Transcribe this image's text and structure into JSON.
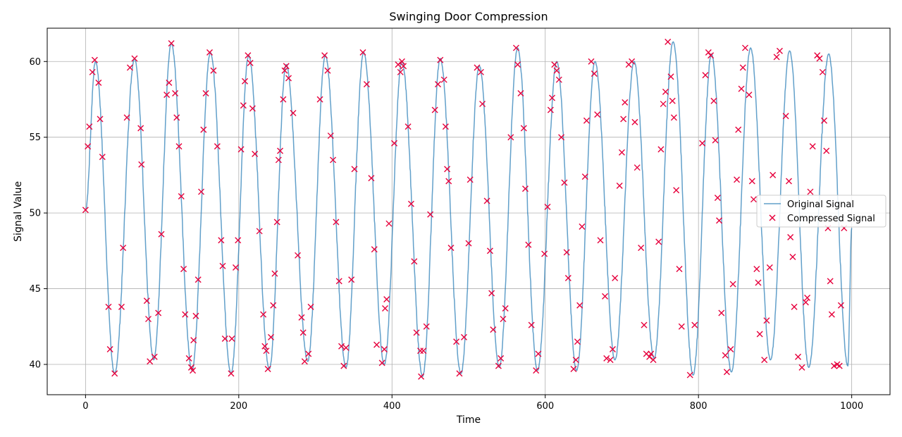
{
  "chart_data": {
    "type": "line",
    "title": "Swinging Door Compression",
    "xlabel": "Time",
    "ylabel": "Signal Value",
    "xlim": [
      -50,
      1050
    ],
    "ylim": [
      38,
      62.2
    ],
    "xticks": [
      0,
      200,
      400,
      600,
      800,
      1000
    ],
    "yticks": [
      40,
      45,
      50,
      55,
      60
    ],
    "grid": true,
    "legend_position": "center-right",
    "series": [
      {
        "name": "Original Signal",
        "style": "line",
        "color": "#1f77b4",
        "description": "noisy sinusoid, amplitude ~10 around 50, period ~50.8 time units",
        "peaks": [
          [
            13,
            60.0
          ],
          [
            64,
            60.2
          ],
          [
            112,
            61.2
          ],
          [
            163,
            60.6
          ],
          [
            213,
            60.4
          ],
          [
            262,
            59.8
          ],
          [
            313,
            60.4
          ],
          [
            363,
            60.6
          ],
          [
            413,
            60.0
          ],
          [
            463,
            60.2
          ],
          [
            514,
            59.7
          ],
          [
            564,
            60.9
          ],
          [
            615,
            60.0
          ],
          [
            665,
            60.0
          ],
          [
            716,
            60.0
          ],
          [
            767,
            61.3
          ],
          [
            817,
            60.5
          ],
          [
            868,
            60.9
          ],
          [
            919,
            60.7
          ],
          [
            970,
            60.5
          ]
        ],
        "troughs": [
          [
            38,
            39.4
          ],
          [
            89,
            40.3
          ],
          [
            139,
            39.6
          ],
          [
            190,
            39.4
          ],
          [
            240,
            39.7
          ],
          [
            290,
            40.2
          ],
          [
            340,
            39.8
          ],
          [
            390,
            40.0
          ],
          [
            440,
            39.2
          ],
          [
            490,
            39.4
          ],
          [
            540,
            39.8
          ],
          [
            590,
            39.6
          ],
          [
            641,
            39.6
          ],
          [
            691,
            40.3
          ],
          [
            742,
            40.4
          ],
          [
            793,
            39.3
          ],
          [
            843,
            39.5
          ],
          [
            894,
            40.3
          ],
          [
            944,
            39.8
          ],
          [
            995,
            39.9
          ]
        ]
      },
      {
        "name": "Compressed Signal",
        "style": "markers-x",
        "color": "#e6003c",
        "points": [
          [
            0,
            50.2
          ],
          [
            3,
            54.4
          ],
          [
            5,
            55.7
          ],
          [
            9,
            59.3
          ],
          [
            12,
            60.1
          ],
          [
            17,
            58.6
          ],
          [
            19,
            56.2
          ],
          [
            22,
            53.7
          ],
          [
            30,
            43.8
          ],
          [
            32,
            41.0
          ],
          [
            38,
            39.4
          ],
          [
            47,
            43.8
          ],
          [
            49,
            47.7
          ],
          [
            54,
            56.3
          ],
          [
            58,
            59.6
          ],
          [
            64,
            60.2
          ],
          [
            72,
            55.6
          ],
          [
            73,
            53.2
          ],
          [
            80,
            44.2
          ],
          [
            82,
            43.0
          ],
          [
            84,
            40.2
          ],
          [
            90,
            40.5
          ],
          [
            95,
            43.4
          ],
          [
            99,
            48.6
          ],
          [
            106,
            57.8
          ],
          [
            109,
            58.6
          ],
          [
            112,
            61.2
          ],
          [
            117,
            57.9
          ],
          [
            119,
            56.3
          ],
          [
            122,
            54.4
          ],
          [
            125,
            51.1
          ],
          [
            128,
            46.3
          ],
          [
            130,
            43.3
          ],
          [
            135,
            40.4
          ],
          [
            138,
            39.8
          ],
          [
            140,
            39.6
          ],
          [
            141,
            41.6
          ],
          [
            144,
            43.2
          ],
          [
            147,
            45.6
          ],
          [
            151,
            51.4
          ],
          [
            154,
            55.5
          ],
          [
            157,
            57.9
          ],
          [
            162,
            60.6
          ],
          [
            167,
            59.4
          ],
          [
            172,
            54.4
          ],
          [
            177,
            48.2
          ],
          [
            179,
            46.5
          ],
          [
            182,
            41.7
          ],
          [
            190,
            39.4
          ],
          [
            191,
            41.7
          ],
          [
            196,
            46.4
          ],
          [
            199,
            48.2
          ],
          [
            203,
            54.2
          ],
          [
            206,
            57.1
          ],
          [
            208,
            58.7
          ],
          [
            212,
            60.4
          ],
          [
            215,
            59.9
          ],
          [
            218,
            56.9
          ],
          [
            221,
            53.9
          ],
          [
            227,
            48.8
          ],
          [
            232,
            43.3
          ],
          [
            234,
            41.2
          ],
          [
            236,
            40.9
          ],
          [
            238,
            39.7
          ],
          [
            242,
            41.8
          ],
          [
            245,
            43.9
          ],
          [
            247,
            46.0
          ],
          [
            250,
            49.4
          ],
          [
            252,
            53.5
          ],
          [
            254,
            54.1
          ],
          [
            258,
            57.5
          ],
          [
            260,
            59.4
          ],
          [
            262,
            59.7
          ],
          [
            265,
            58.9
          ],
          [
            271,
            56.6
          ],
          [
            277,
            47.2
          ],
          [
            282,
            43.1
          ],
          [
            284,
            42.1
          ],
          [
            286,
            40.2
          ],
          [
            291,
            40.7
          ],
          [
            294,
            43.8
          ],
          [
            306,
            57.5
          ],
          [
            312,
            60.4
          ],
          [
            316,
            59.4
          ],
          [
            320,
            55.1
          ],
          [
            323,
            53.5
          ],
          [
            327,
            49.4
          ],
          [
            331,
            45.5
          ],
          [
            334,
            41.2
          ],
          [
            337,
            39.9
          ],
          [
            340,
            41.1
          ],
          [
            347,
            45.6
          ],
          [
            351,
            52.9
          ],
          [
            362,
            60.6
          ],
          [
            367,
            58.5
          ],
          [
            373,
            52.3
          ],
          [
            377,
            47.6
          ],
          [
            380,
            41.3
          ],
          [
            387,
            40.1
          ],
          [
            390,
            41.0
          ],
          [
            391,
            43.7
          ],
          [
            393,
            44.3
          ],
          [
            396,
            49.3
          ],
          [
            403,
            54.6
          ],
          [
            408,
            59.8
          ],
          [
            411,
            59.3
          ],
          [
            413,
            60.0
          ],
          [
            415,
            59.7
          ],
          [
            421,
            55.7
          ],
          [
            425,
            50.6
          ],
          [
            429,
            46.8
          ],
          [
            432,
            42.1
          ],
          [
            437,
            40.9
          ],
          [
            438,
            39.2
          ],
          [
            441,
            40.9
          ],
          [
            445,
            42.5
          ],
          [
            450,
            49.9
          ],
          [
            456,
            56.8
          ],
          [
            460,
            58.5
          ],
          [
            463,
            60.1
          ],
          [
            468,
            58.8
          ],
          [
            470,
            55.7
          ],
          [
            472,
            52.9
          ],
          [
            474,
            52.1
          ],
          [
            477,
            47.7
          ],
          [
            484,
            41.5
          ],
          [
            488,
            39.4
          ],
          [
            494,
            41.8
          ],
          [
            500,
            48.0
          ],
          [
            502,
            52.2
          ],
          [
            511,
            59.6
          ],
          [
            516,
            59.3
          ],
          [
            518,
            57.2
          ],
          [
            524,
            50.8
          ],
          [
            528,
            47.5
          ],
          [
            530,
            44.7
          ],
          [
            532,
            42.3
          ],
          [
            539,
            39.9
          ],
          [
            542,
            40.4
          ],
          [
            545,
            43.0
          ],
          [
            548,
            43.7
          ],
          [
            555,
            55.0
          ],
          [
            562,
            60.9
          ],
          [
            564,
            59.8
          ],
          [
            568,
            57.9
          ],
          [
            572,
            55.6
          ],
          [
            574,
            51.6
          ],
          [
            578,
            47.9
          ],
          [
            582,
            42.6
          ],
          [
            588,
            39.6
          ],
          [
            591,
            40.7
          ],
          [
            599,
            47.3
          ],
          [
            603,
            50.4
          ],
          [
            607,
            56.8
          ],
          [
            609,
            57.6
          ],
          [
            612,
            59.8
          ],
          [
            615,
            59.4
          ],
          [
            618,
            58.8
          ],
          [
            621,
            55.0
          ],
          [
            625,
            52.0
          ],
          [
            628,
            47.4
          ],
          [
            630,
            45.7
          ],
          [
            637,
            39.7
          ],
          [
            640,
            40.3
          ],
          [
            642,
            41.5
          ],
          [
            645,
            43.9
          ],
          [
            648,
            49.1
          ],
          [
            652,
            52.4
          ],
          [
            654,
            56.1
          ],
          [
            660,
            60.0
          ],
          [
            664,
            59.2
          ],
          [
            668,
            56.5
          ],
          [
            672,
            48.2
          ],
          [
            678,
            44.5
          ],
          [
            680,
            40.4
          ],
          [
            685,
            40.3
          ],
          [
            688,
            41.0
          ],
          [
            691,
            45.7
          ],
          [
            697,
            51.8
          ],
          [
            700,
            54.0
          ],
          [
            702,
            56.2
          ],
          [
            704,
            57.3
          ],
          [
            709,
            59.8
          ],
          [
            713,
            60.0
          ],
          [
            717,
            56.0
          ],
          [
            720,
            53.0
          ],
          [
            725,
            47.7
          ],
          [
            729,
            42.6
          ],
          [
            732,
            40.7
          ],
          [
            736,
            40.5
          ],
          [
            738,
            40.7
          ],
          [
            741,
            40.3
          ],
          [
            748,
            48.1
          ],
          [
            751,
            54.2
          ],
          [
            754,
            57.2
          ],
          [
            757,
            58.0
          ],
          [
            760,
            61.3
          ],
          [
            764,
            59.0
          ],
          [
            766,
            57.4
          ],
          [
            768,
            56.3
          ],
          [
            771,
            51.5
          ],
          [
            775,
            46.3
          ],
          [
            778,
            42.5
          ],
          [
            789,
            39.3
          ],
          [
            795,
            42.6
          ],
          [
            805,
            54.6
          ],
          [
            809,
            59.1
          ],
          [
            813,
            60.6
          ],
          [
            816,
            60.4
          ],
          [
            820,
            57.4
          ],
          [
            822,
            54.8
          ],
          [
            825,
            51.0
          ],
          [
            827,
            49.5
          ],
          [
            830,
            43.4
          ],
          [
            835,
            40.6
          ],
          [
            837,
            39.5
          ],
          [
            842,
            41.0
          ],
          [
            845,
            45.3
          ],
          [
            850,
            52.2
          ],
          [
            852,
            55.5
          ],
          [
            856,
            58.2
          ],
          [
            858,
            59.6
          ],
          [
            861,
            60.9
          ],
          [
            866,
            57.8
          ],
          [
            870,
            52.1
          ],
          [
            872,
            50.9
          ],
          [
            876,
            46.3
          ],
          [
            878,
            45.4
          ],
          [
            880,
            42.0
          ],
          [
            886,
            40.3
          ],
          [
            889,
            42.9
          ],
          [
            893,
            46.4
          ],
          [
            897,
            52.5
          ],
          [
            902,
            60.3
          ],
          [
            906,
            60.7
          ],
          [
            914,
            56.4
          ],
          [
            918,
            52.1
          ],
          [
            920,
            48.4
          ],
          [
            923,
            47.1
          ],
          [
            925,
            43.8
          ],
          [
            930,
            40.5
          ],
          [
            935,
            39.8
          ],
          [
            940,
            44.1
          ],
          [
            942,
            44.4
          ],
          [
            946,
            51.4
          ],
          [
            949,
            54.4
          ],
          [
            955,
            60.4
          ],
          [
            958,
            60.2
          ],
          [
            962,
            59.3
          ],
          [
            964,
            56.1
          ],
          [
            967,
            54.1
          ],
          [
            969,
            49.0
          ],
          [
            972,
            45.5
          ],
          [
            974,
            43.3
          ],
          [
            977,
            39.9
          ],
          [
            981,
            40.0
          ],
          [
            984,
            39.9
          ],
          [
            986,
            43.9
          ],
          [
            990,
            49.0
          ]
        ]
      }
    ]
  }
}
